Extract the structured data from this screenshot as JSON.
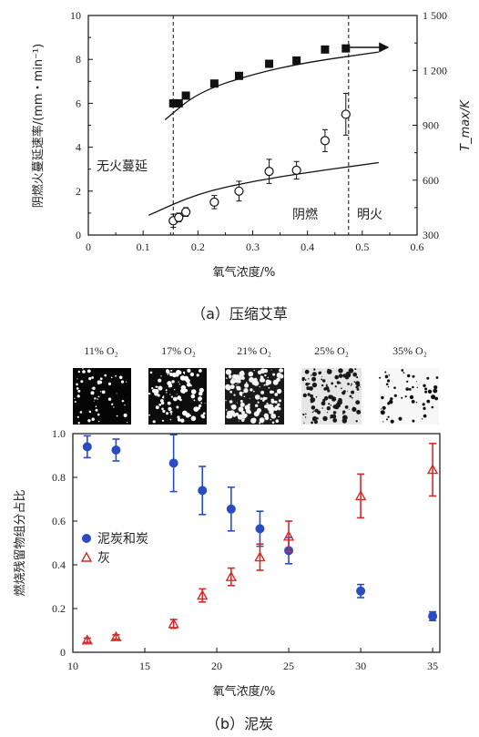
{
  "chart_data": [
    {
      "type": "scatter",
      "caption": "（a）压缩艾草",
      "xlabel": "氧气浓度/%",
      "ylabel": "阴燃火蔓延速率/(mm・min⁻¹)",
      "y2label": "T_max/K",
      "xlim": [
        0,
        0.6
      ],
      "ylim": [
        0,
        10
      ],
      "y2lim": [
        300,
        1500
      ],
      "xticks": [
        "0",
        "0.1",
        "0.2",
        "0.3",
        "0.4",
        "0.5",
        "0.6"
      ],
      "yticks": [
        "0",
        "2",
        "4",
        "6",
        "8",
        "10"
      ],
      "y2ticks": [
        "300",
        "600",
        "900",
        "1 200",
        "1 500"
      ],
      "vlines": [
        0.155,
        0.475
      ],
      "region_labels": [
        "无火蔓延",
        "阴燃",
        "明火"
      ],
      "series": [
        {
          "marker": "filled-square",
          "axis": "right",
          "x": [
            0.155,
            0.165,
            0.178,
            0.23,
            0.275,
            0.33,
            0.38,
            0.432,
            0.47
          ],
          "y": [
            1020,
            1020,
            1062,
            1128,
            1170,
            1236,
            1254,
            1314,
            1320
          ],
          "err": [
            18,
            18,
            18,
            18,
            18,
            18,
            18,
            18,
            18
          ]
        },
        {
          "marker": "open-circle",
          "axis": "left",
          "x": [
            0.155,
            0.165,
            0.178,
            0.23,
            0.275,
            0.33,
            0.38,
            0.432,
            0.47
          ],
          "y": [
            0.65,
            0.8,
            1.05,
            1.5,
            2.0,
            2.9,
            2.95,
            4.3,
            5.5
          ],
          "err": [
            0.3,
            0.2,
            0.2,
            0.3,
            0.45,
            0.55,
            0.4,
            0.5,
            0.95
          ]
        }
      ],
      "fit_curves": [
        {
          "axis": "right",
          "x": [
            0.14,
            0.2,
            0.3,
            0.4,
            0.53
          ],
          "y": [
            930,
            1080,
            1180,
            1245,
            1300
          ]
        },
        {
          "axis": "left",
          "x": [
            0.11,
            0.2,
            0.3,
            0.4,
            0.53
          ],
          "y": [
            0.9,
            1.9,
            2.45,
            2.85,
            3.3
          ]
        }
      ]
    },
    {
      "type": "scatter",
      "caption": "（b）泥炭",
      "xlabel": "氧气浓度/%",
      "ylabel": "燃烧残留物组分占比",
      "xlim": [
        10,
        35.5
      ],
      "ylim": [
        0,
        1.0
      ],
      "xticks": [
        "10",
        "15",
        "20",
        "25",
        "30",
        "35"
      ],
      "yticks": [
        "0",
        "0.2",
        "0.4",
        "0.6",
        "0.8",
        "1.0"
      ],
      "image_labels": [
        "11% O₂",
        "17% O₂",
        "21% O₂",
        "25% O₂",
        "35% O₂"
      ],
      "legend_position": "left",
      "series": [
        {
          "name": "泥炭和炭",
          "color": "#2b4cc0",
          "marker": "filled-circle",
          "x": [
            11,
            13,
            17,
            19,
            21,
            23,
            25,
            30,
            35
          ],
          "y": [
            0.94,
            0.925,
            0.865,
            0.74,
            0.655,
            0.565,
            0.465,
            0.28,
            0.165
          ],
          "err": [
            0.05,
            0.05,
            0.13,
            0.11,
            0.1,
            0.08,
            0.06,
            0.03,
            0.02
          ]
        },
        {
          "name": "灰",
          "color": "#d42a2a",
          "marker": "open-triangle",
          "x": [
            11,
            13,
            17,
            19,
            21,
            23,
            25,
            30,
            35
          ],
          "y": [
            0.055,
            0.07,
            0.13,
            0.26,
            0.345,
            0.435,
            0.53,
            0.715,
            0.835
          ],
          "err": [
            0.01,
            0.01,
            0.02,
            0.03,
            0.04,
            0.06,
            0.07,
            0.1,
            0.12
          ]
        }
      ]
    }
  ]
}
